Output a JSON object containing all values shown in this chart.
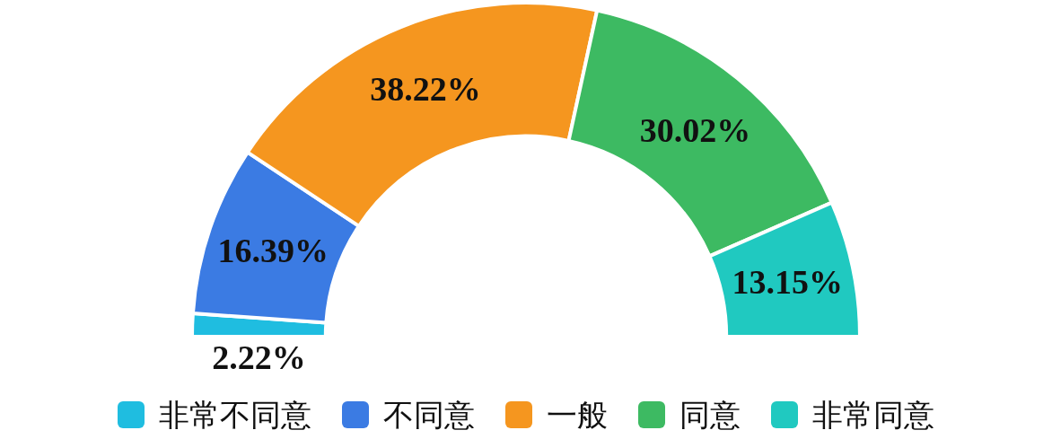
{
  "chart_data": {
    "type": "donut",
    "categories": [
      "非常不同意",
      "不同意",
      "一般",
      "同意",
      "非常同意"
    ],
    "values": [
      2.22,
      16.39,
      38.22,
      30.02,
      13.15
    ],
    "value_labels": [
      "2.22%",
      "16.39%",
      "38.22%",
      "30.02%",
      "13.15%"
    ],
    "colors": [
      "#1fbde0",
      "#3b7be3",
      "#f5961f",
      "#3dba62",
      "#20c9c0"
    ],
    "legend": "bottom"
  }
}
